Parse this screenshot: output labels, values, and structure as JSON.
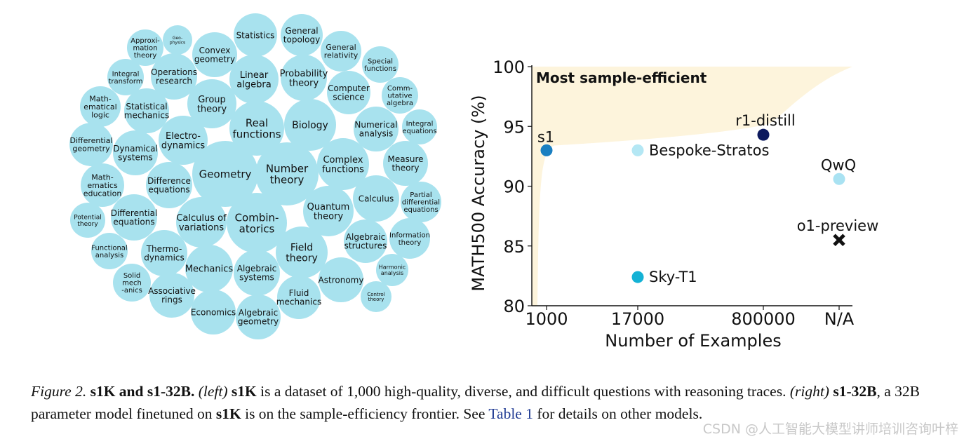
{
  "bubble_chart": {
    "color": "#a8e2ee",
    "topics": [
      [
        "Statistics"
      ],
      [
        "General",
        "topology"
      ],
      [
        "Approxi-",
        "mation",
        "theory"
      ],
      [
        "Geo-",
        "physics"
      ],
      [
        "Convex",
        "geometry"
      ],
      [
        "General",
        "relativity"
      ],
      [
        "Special",
        "functions"
      ],
      [
        "Integral",
        "transform"
      ],
      [
        "Operations",
        "research"
      ],
      [
        "Linear",
        "algebra"
      ],
      [
        "Probability",
        "theory"
      ],
      [
        "Computer",
        "science"
      ],
      [
        "Comm-",
        "utative",
        "algebra"
      ],
      [
        "Math-",
        "ematical",
        "logic"
      ],
      [
        "Statistical",
        "mechanics"
      ],
      [
        "Group",
        "theory"
      ],
      [
        "Real",
        "functions"
      ],
      [
        "Biology"
      ],
      [
        "Numerical",
        "analysis"
      ],
      [
        "Integral",
        "equations"
      ],
      [
        "Differential",
        "geometry"
      ],
      [
        "Dynamical",
        "systems"
      ],
      [
        "Electro-",
        "dynamics"
      ],
      [
        "Geometry"
      ],
      [
        "Number",
        "theory"
      ],
      [
        "Complex",
        "functions"
      ],
      [
        "Measure",
        "theory"
      ],
      [
        "Math-",
        "ematics",
        "education"
      ],
      [
        "Difference",
        "equations"
      ],
      [
        "Calculus"
      ],
      [
        "Partial",
        "differential",
        "equations"
      ],
      [
        "Potential",
        "theory"
      ],
      [
        "Differential",
        "equations"
      ],
      [
        "Calculus of",
        "variations"
      ],
      [
        "Combin-",
        "atorics"
      ],
      [
        "Quantum",
        "theory"
      ],
      [
        "Algebraic",
        "structures"
      ],
      [
        "Information",
        "theory"
      ],
      [
        "Functional",
        "analysis"
      ],
      [
        "Thermo-",
        "dynamics"
      ],
      [
        "Field",
        "theory"
      ],
      [
        "Mechanics"
      ],
      [
        "Algebraic",
        "systems"
      ],
      [
        "Harmonic",
        "analysis"
      ],
      [
        "Solid",
        "mech",
        "-anics"
      ],
      [
        "Associative",
        "rings"
      ],
      [
        "Astronomy"
      ],
      [
        "Fluid",
        "mechanics"
      ],
      [
        "Control",
        "theory"
      ],
      [
        "Economics"
      ],
      [
        "Algebraic",
        "geometry"
      ]
    ]
  },
  "chart_data": {
    "type": "scatter",
    "xlabel": "Number of Examples",
    "ylabel": "MATH500 Accuracy (%)",
    "x_categories": [
      "1000",
      "17000",
      "800000",
      "N/A"
    ],
    "ylim": [
      80,
      100
    ],
    "yticks": [
      80,
      85,
      90,
      95,
      100
    ],
    "annotation": "Most sample-efficient",
    "annotation_color": "#f2b515",
    "frontier_fill": "#fdf4dc",
    "points": [
      {
        "name": "s1",
        "x": "1000",
        "y": 93.0,
        "color": "#1a7fc1",
        "marker": "circle"
      },
      {
        "name": "Bespoke-Stratos",
        "x": "17000",
        "y": 93.0,
        "color": "#b4e7f4",
        "marker": "circle"
      },
      {
        "name": "Sky-T1",
        "x": "17000",
        "y": 82.4,
        "color": "#14b2d5",
        "marker": "circle"
      },
      {
        "name": "r1-distill",
        "x": "800000",
        "y": 94.3,
        "color": "#0d1a5e",
        "marker": "circle"
      },
      {
        "name": "QwQ",
        "x": "N/A",
        "y": 90.6,
        "color": "#a9e2f2",
        "marker": "circle"
      },
      {
        "name": "o1-preview",
        "x": "N/A",
        "y": 85.5,
        "color": "#111111",
        "marker": "x"
      }
    ]
  },
  "caption": {
    "fig_label": "Figure 2.",
    "title": "s1K and s1-32B.",
    "left_tag": "(left)",
    "s1k_1": "s1K",
    "text_1": "is a dataset of 1,000 high-quality, diverse, and difficult questions with reasoning traces.",
    "right_tag": "(right)",
    "s1_32b": "s1-32B",
    "text_2": ", a 32B parameter model finetuned on",
    "s1k_2": "s1K",
    "text_3": "is on the sample-efficiency frontier. See",
    "table_link": "Table 1",
    "text_4": "for details on other models."
  },
  "watermark": "CSDN @人工智能大模型讲师培训咨询叶梓"
}
